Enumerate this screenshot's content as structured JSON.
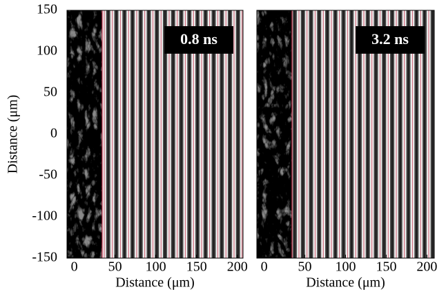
{
  "chart_data": [
    {
      "type": "image",
      "annotation": "0.8 ns",
      "xlabel": "Distance (μm)",
      "ylabel": "Distance (μm)",
      "xlim": [
        -9,
        207
      ],
      "xticks": [
        0,
        50,
        100,
        150,
        200
      ],
      "ylim": [
        -150,
        150
      ],
      "yticks": [
        -150,
        -100,
        -50,
        0,
        50,
        100,
        150
      ]
    },
    {
      "type": "image",
      "annotation": "3.2 ns",
      "xlabel": "Distance (μm)",
      "xlim": [
        -9,
        209
      ],
      "xticks": [
        0,
        50,
        100,
        150,
        200
      ],
      "ylim": [
        -150,
        150
      ]
    }
  ]
}
